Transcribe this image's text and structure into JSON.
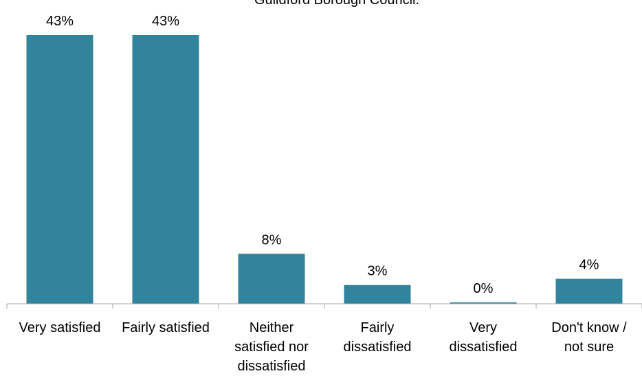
{
  "chart_data": {
    "type": "bar",
    "title": "Guildford Borough Council.",
    "categories": [
      [
        "Very satisfied"
      ],
      [
        "Fairly satisfied"
      ],
      [
        "Neither",
        "satisfied nor",
        "dissatisfied"
      ],
      [
        "Fairly",
        "dissatisfied"
      ],
      [
        "Very",
        "dissatisfied"
      ],
      [
        "Don't know /",
        "not sure"
      ]
    ],
    "values": [
      43,
      43,
      8,
      3,
      0,
      4
    ],
    "value_labels": [
      "43%",
      "43%",
      "8%",
      "3%",
      "0%",
      "4%"
    ],
    "unit": "%",
    "ylim": [
      0,
      43
    ],
    "grid": false,
    "legend": "none",
    "bar_color": "#31849B",
    "axis_color": "#A6A6A6"
  }
}
